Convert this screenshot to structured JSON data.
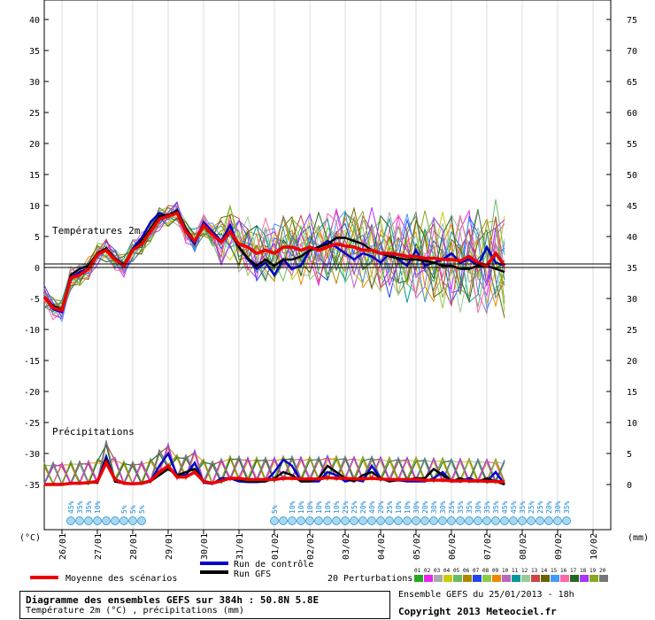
{
  "chart_data": {
    "type": "line",
    "x": [
      "26/01",
      "27/01",
      "28/01",
      "29/01",
      "30/01",
      "31/01",
      "01/02",
      "02/02",
      "03/02",
      "04/02",
      "05/02",
      "06/02",
      "07/02",
      "08/02",
      "09/02",
      "10/02"
    ],
    "left_axis": {
      "unit": "(°C)",
      "ticks": [
        "40",
        "35",
        "30",
        "25",
        "20",
        "15",
        "10",
        "5",
        "0",
        "-5",
        "-10",
        "-15",
        "-20",
        "-25",
        "-30",
        "-35"
      ],
      "ylim": [
        -35,
        40
      ]
    },
    "right_axis": {
      "unit": "(mm)",
      "ticks": [
        "75",
        "70",
        "65",
        "60",
        "55",
        "50",
        "45",
        "40",
        "35",
        "30",
        "25",
        "20",
        "15",
        "10",
        "5",
        "0"
      ]
    },
    "sections": {
      "temperature": "Températures 2m",
      "precipitation": "Précipitations"
    },
    "series": [
      {
        "name": "Run de contrôle",
        "color": "#0000cc",
        "temp": [
          -5,
          -7,
          -7.5,
          -2,
          -1,
          -0.5,
          2,
          2.8,
          1,
          0,
          2.8,
          4.5,
          7,
          8.5,
          8,
          9,
          5.5,
          3.5,
          7,
          5.5,
          4,
          6.5,
          3,
          1,
          -0.5,
          0.5,
          -1.5,
          1,
          -0.5,
          0,
          2.5,
          3,
          4,
          3,
          2,
          1,
          2,
          1.5,
          0.5,
          2,
          1,
          0,
          2.5,
          0,
          0.5,
          1,
          2,
          0.5,
          1,
          0,
          3,
          0.5,
          0
        ],
        "precip": [
          0,
          0,
          0,
          0.2,
          0.1,
          0.3,
          0.4,
          4.5,
          0.5,
          0.2,
          0.1,
          0.1,
          0.5,
          3,
          5,
          1.5,
          1.5,
          3.5,
          0.3,
          0.1,
          1,
          1,
          0.5,
          0.4,
          0.4,
          0.5,
          2,
          4,
          3,
          0.5,
          0.5,
          0.5,
          2,
          1.5,
          0.5,
          0.8,
          0.5,
          3,
          1,
          0.5,
          0.7,
          0.5,
          0.5,
          0.5,
          1,
          2,
          0.5,
          0.5,
          1,
          0.5,
          0.5,
          2,
          0
        ]
      },
      {
        "name": "Run GFS",
        "color": "#000000",
        "temp": [
          -5,
          -6.5,
          -7,
          -1.5,
          -0.5,
          0,
          2,
          2.8,
          1.2,
          0.2,
          2.5,
          4,
          6,
          8,
          8.2,
          8.8,
          6,
          4,
          6.5,
          5,
          3.8,
          5.5,
          3,
          1.2,
          0,
          1,
          0,
          1,
          1,
          1.5,
          2.5,
          3,
          3.5,
          4.5,
          4.5,
          4,
          3.5,
          2.5,
          2,
          1.5,
          1.2,
          1,
          1,
          0.8,
          0.5,
          0,
          0,
          -0.5,
          -0.5,
          0,
          0,
          -0.5,
          -1
        ],
        "precip": [
          0,
          0,
          0,
          0.2,
          0.2,
          0.3,
          0.3,
          4,
          0.5,
          0.2,
          0.1,
          0.2,
          0.5,
          1.5,
          2.5,
          1.5,
          2,
          2.5,
          0.5,
          0.2,
          0.5,
          1,
          0.8,
          0.5,
          0.5,
          0.5,
          1,
          2,
          1.5,
          0.5,
          0.5,
          1,
          3,
          2,
          1,
          0.5,
          1.5,
          2,
          1,
          0.5,
          0.8,
          0.8,
          1,
          1,
          2.5,
          1.5,
          0.5,
          1,
          0.5,
          0.5,
          1,
          0.5,
          0
        ]
      },
      {
        "name": "Moyenne des scénarios",
        "color": "#ee0000",
        "temp": [
          -5,
          -6.8,
          -7.2,
          -2,
          -1.5,
          -0.5,
          1.8,
          2.5,
          1,
          0,
          2.5,
          3.5,
          5.5,
          7.5,
          8,
          8.5,
          5.5,
          4,
          6.5,
          5,
          3.8,
          5.5,
          3.5,
          3,
          2,
          2.5,
          2,
          3,
          3,
          2.5,
          3,
          2.5,
          3,
          3.5,
          3.2,
          3,
          2.5,
          2.5,
          2,
          2,
          1.8,
          1.5,
          1.5,
          1.2,
          1.2,
          1,
          1,
          0.8,
          1.5,
          0.5,
          0,
          2,
          0
        ],
        "precip": [
          0,
          0,
          0,
          0.2,
          0.2,
          0.3,
          0.5,
          3.5,
          0.8,
          0.2,
          0.1,
          0.2,
          0.6,
          2,
          3,
          1.2,
          1.2,
          2,
          0.5,
          0.2,
          0.6,
          1,
          1,
          0.8,
          0.8,
          0.8,
          0.8,
          1,
          1,
          0.9,
          0.9,
          0.9,
          1.1,
          1,
          1,
          0.9,
          0.9,
          1,
          0.9,
          0.8,
          0.8,
          0.8,
          0.8,
          0.7,
          0.7,
          0.7,
          0.6,
          0.6,
          0.6,
          0.6,
          0.5,
          0.5,
          0.4
        ]
      }
    ],
    "perturbations": {
      "label": "20 Perturbations",
      "count": 20,
      "numbers": [
        "01",
        "02",
        "03",
        "04",
        "05",
        "06",
        "07",
        "08",
        "09",
        "10",
        "11",
        "12",
        "13",
        "14",
        "15",
        "16",
        "17",
        "18",
        "19",
        "20"
      ],
      "colors": [
        "#22aa22",
        "#ee22ee",
        "#aaaaaa",
        "#cccc00",
        "#66bb66",
        "#aa8800",
        "#2244ee",
        "#88cc44",
        "#ee8800",
        "#bb66bb",
        "#009999",
        "#99cc99",
        "#cc4444",
        "#666600",
        "#4499ff",
        "#ff66aa",
        "#226622",
        "#aa33ff",
        "#88aa22",
        "#777777"
      ]
    },
    "snow_probabilities": {
      "early": [
        "45%",
        "35%",
        "35%",
        "10%",
        "",
        "",
        "5%",
        "5%",
        "5%"
      ],
      "late": [
        "5%",
        "",
        "10%",
        "10%",
        "10%",
        "10%",
        "10%",
        "10%",
        "25%",
        "25%",
        "20%",
        "40%",
        "20%",
        "25%",
        "10%",
        "10%",
        "30%",
        "20%",
        "30%",
        "30%",
        "25%",
        "35%",
        "35%",
        "30%",
        "35%",
        "35%",
        "45%",
        "45%",
        "35%",
        "25%",
        "25%",
        "20%",
        "30%",
        "35%"
      ]
    },
    "grid": true,
    "legend": "bottom"
  },
  "legend": {
    "mean": "Moyenne des scénarios",
    "control": "Run de contrôle",
    "gfs": "Run GFS"
  },
  "footer": {
    "title": "Diagramme des ensembles GEFS sur 384h : 50.8N 5.8E",
    "subtitle": "Température 2m (°C) , précipitations (mm)",
    "run_info": "Ensemble GEFS du 25/01/2013 - 18h",
    "copyright": "Copyright 2013 Meteociel.fr"
  }
}
